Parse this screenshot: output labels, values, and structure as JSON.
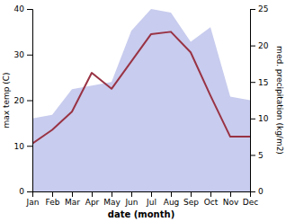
{
  "chart_data": {
    "type": "line",
    "categories": [
      "Jan",
      "Feb",
      "Mar",
      "Apr",
      "May",
      "Jun",
      "Jul",
      "Aug",
      "Sep",
      "Oct",
      "Nov",
      "Dec"
    ],
    "xlabel": "date (month)",
    "ylabel": "max temp (C)",
    "y2label": "med. precipitation (kg/m2)",
    "ylim": [
      0,
      40
    ],
    "yticks": [
      0,
      10,
      20,
      30,
      40
    ],
    "y2lim": [
      0,
      25
    ],
    "y2ticks": [
      0,
      5,
      10,
      15,
      20,
      25
    ],
    "grid": false,
    "series": [
      {
        "type": "area",
        "axis": "y2",
        "color": "#c8ccee",
        "values": [
          10.0,
          10.5,
          14.0,
          14.5,
          15.0,
          22.0,
          25.0,
          24.5,
          20.5,
          22.5,
          13.0,
          12.5
        ]
      },
      {
        "type": "line",
        "color": "#993344",
        "values": [
          10.5,
          13.5,
          17.5,
          26.0,
          22.5,
          28.5,
          34.5,
          35.0,
          30.5,
          21.0,
          12.0,
          12.0
        ]
      }
    ]
  }
}
